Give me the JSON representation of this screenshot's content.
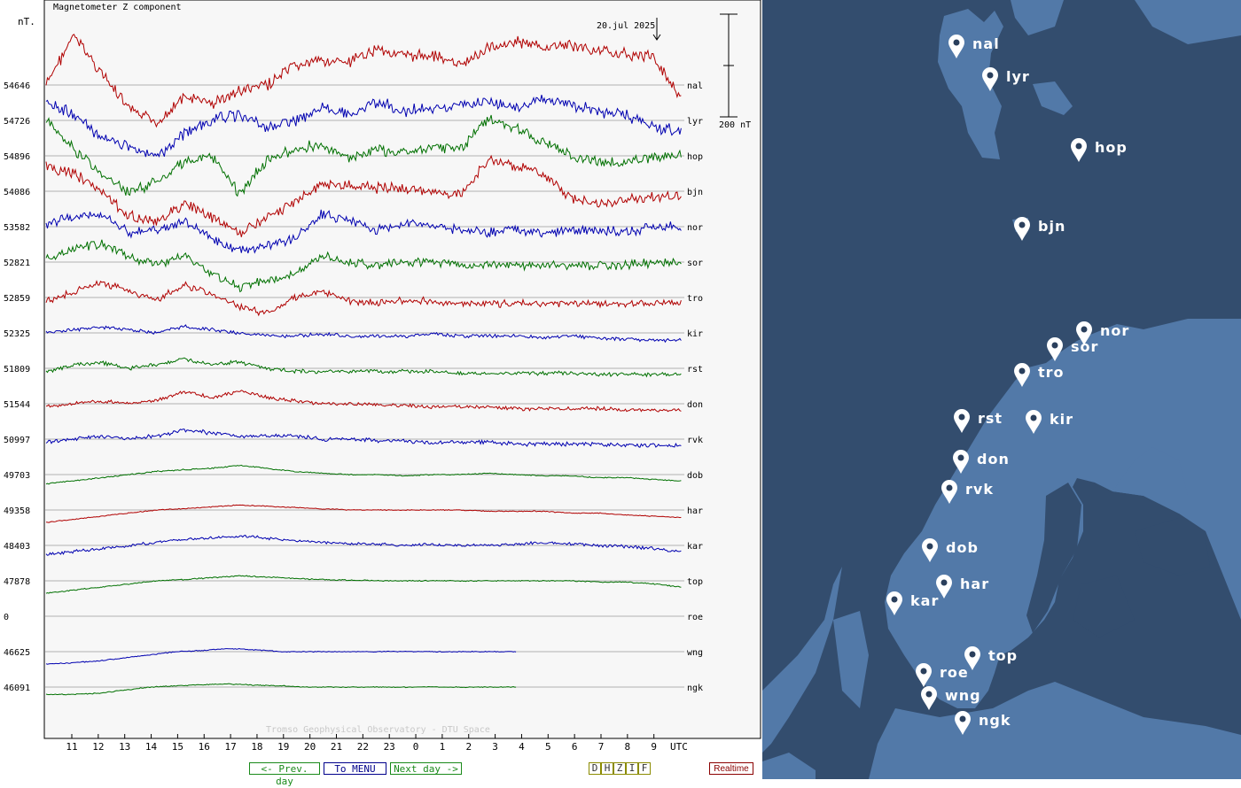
{
  "chart_data": {
    "type": "line",
    "title": "Magnetometer Z component",
    "ylabel": "nT.",
    "xlabel": "UTC",
    "date_label": "20.jul 2025",
    "scale_label": "200 nT",
    "x_ticks": [
      "11",
      "12",
      "13",
      "14",
      "15",
      "16",
      "17",
      "18",
      "19",
      "20",
      "21",
      "22",
      "23",
      "0",
      "1",
      "2",
      "3",
      "4",
      "5",
      "6",
      "7",
      "8",
      "9"
    ],
    "x_start_hour": 10.0,
    "x_hours_span": 24,
    "grid": true,
    "watermark": "Tromso Geophysical Observatory - DTU Space",
    "stations": [
      {
        "code": "nal",
        "baseline": "54646",
        "color": "#b00000",
        "coverage": 1.0,
        "activity": 1.0,
        "pattern": [
          0,
          80,
          20,
          -40,
          -60,
          -20,
          -30,
          -10,
          0,
          30,
          40,
          35,
          60,
          45,
          50,
          30,
          60,
          70,
          60,
          65,
          55,
          50,
          45,
          -20
        ]
      },
      {
        "code": "lyr",
        "baseline": "54726",
        "color": "#0000b0",
        "coverage": 1.0,
        "activity": 1.0,
        "pattern": [
          30,
          10,
          -30,
          -40,
          -60,
          -20,
          0,
          10,
          -10,
          0,
          20,
          10,
          30,
          15,
          20,
          25,
          30,
          20,
          35,
          25,
          15,
          10,
          -10,
          -20
        ]
      },
      {
        "code": "hop",
        "baseline": "54896",
        "color": "#007000",
        "coverage": 1.0,
        "activity": 0.95,
        "pattern": [
          60,
          10,
          -30,
          -60,
          -40,
          -10,
          0,
          -60,
          -10,
          10,
          20,
          -5,
          10,
          5,
          15,
          10,
          60,
          45,
          20,
          0,
          -10,
          -10,
          -5,
          0
        ]
      },
      {
        "code": "bjn",
        "baseline": "54086",
        "color": "#b00000",
        "coverage": 1.0,
        "activity": 0.9,
        "pattern": [
          40,
          30,
          0,
          -40,
          -50,
          -20,
          -40,
          -70,
          -40,
          -20,
          10,
          10,
          5,
          5,
          0,
          -5,
          50,
          40,
          30,
          -10,
          -20,
          -15,
          -10,
          -10
        ]
      },
      {
        "code": "nor",
        "baseline": "53582",
        "color": "#0000b0",
        "coverage": 1.0,
        "activity": 0.8,
        "pattern": [
          5,
          15,
          20,
          -10,
          -5,
          10,
          -20,
          -40,
          -30,
          -20,
          20,
          10,
          -5,
          5,
          0,
          -5,
          -10,
          -5,
          -10,
          -5,
          -5,
          -10,
          0,
          0
        ]
      },
      {
        "code": "sor",
        "baseline": "52821",
        "color": "#007000",
        "coverage": 1.0,
        "activity": 0.75,
        "pattern": [
          5,
          20,
          30,
          10,
          -5,
          10,
          -20,
          -40,
          -30,
          -20,
          10,
          0,
          -5,
          0,
          0,
          -5,
          -5,
          -5,
          -5,
          -5,
          -5,
          -5,
          0,
          0
        ]
      },
      {
        "code": "tro",
        "baseline": "52859",
        "color": "#b00000",
        "coverage": 1.0,
        "activity": 0.6,
        "pattern": [
          -5,
          10,
          25,
          10,
          -5,
          20,
          5,
          -15,
          -25,
          0,
          10,
          -5,
          -10,
          -5,
          -5,
          -10,
          -10,
          -10,
          -10,
          -10,
          -10,
          -10,
          -10,
          -10
        ]
      },
      {
        "code": "kir",
        "baseline": "52325",
        "color": "#0000b0",
        "coverage": 1.0,
        "activity": 0.3,
        "pattern": [
          0,
          5,
          10,
          5,
          0,
          10,
          5,
          0,
          -5,
          -5,
          -2,
          -5,
          -5,
          -5,
          -2,
          -5,
          -5,
          -5,
          -8,
          -5,
          -8,
          -10,
          -12,
          -12
        ]
      },
      {
        "code": "rst",
        "baseline": "51809",
        "color": "#007000",
        "coverage": 1.0,
        "activity": 0.35,
        "pattern": [
          -5,
          5,
          10,
          0,
          5,
          15,
          5,
          10,
          0,
          -5,
          -5,
          -5,
          -5,
          -5,
          -5,
          -8,
          -8,
          -8,
          -8,
          -8,
          -10,
          -10,
          -10,
          -10
        ]
      },
      {
        "code": "don",
        "baseline": "51544",
        "color": "#b00000",
        "coverage": 1.0,
        "activity": 0.3,
        "pattern": [
          -5,
          0,
          5,
          0,
          5,
          20,
          10,
          20,
          10,
          5,
          0,
          0,
          -2,
          -3,
          -5,
          -5,
          -5,
          -8,
          -8,
          -8,
          -8,
          -10,
          -10,
          -10
        ]
      },
      {
        "code": "rvk",
        "baseline": "50997",
        "color": "#0000b0",
        "coverage": 1.0,
        "activity": 0.35,
        "pattern": [
          -5,
          0,
          5,
          0,
          5,
          15,
          10,
          5,
          5,
          5,
          0,
          0,
          -2,
          -3,
          -5,
          -5,
          -5,
          -8,
          -8,
          -8,
          -8,
          -10,
          -10,
          -10
        ]
      },
      {
        "code": "dob",
        "baseline": "49703",
        "color": "#007000",
        "coverage": 1.0,
        "activity": 0.1,
        "pattern": [
          -15,
          -10,
          -5,
          0,
          5,
          8,
          10,
          15,
          10,
          5,
          2,
          0,
          0,
          -2,
          0,
          0,
          2,
          0,
          -2,
          -2,
          -5,
          -5,
          -8,
          -10
        ]
      },
      {
        "code": "har",
        "baseline": "49358",
        "color": "#b00000",
        "coverage": 1.0,
        "activity": 0.08,
        "pattern": [
          -20,
          -15,
          -10,
          -5,
          0,
          2,
          5,
          8,
          6,
          4,
          2,
          0,
          0,
          0,
          0,
          0,
          -2,
          -2,
          -2,
          -5,
          -5,
          -8,
          -10,
          -12
        ]
      },
      {
        "code": "kar",
        "baseline": "48403",
        "color": "#0000b0",
        "coverage": 1.0,
        "activity": 0.25,
        "pattern": [
          -15,
          -10,
          -5,
          0,
          5,
          10,
          12,
          15,
          12,
          8,
          5,
          3,
          2,
          0,
          2,
          0,
          0,
          2,
          5,
          3,
          0,
          -2,
          -5,
          -10
        ]
      },
      {
        "code": "top",
        "baseline": "47878",
        "color": "#007000",
        "coverage": 1.0,
        "activity": 0.1,
        "pattern": [
          -20,
          -15,
          -10,
          -5,
          0,
          2,
          5,
          8,
          6,
          4,
          2,
          1,
          0,
          0,
          0,
          0,
          0,
          0,
          0,
          0,
          -2,
          -2,
          -5,
          -10
        ]
      },
      {
        "code": "roe",
        "baseline": "0",
        "color": "#0000b0",
        "coverage": 0.0,
        "activity": 0.0,
        "pattern": []
      },
      {
        "code": "wng",
        "baseline": "46625",
        "color": "#0000b0",
        "coverage": 0.74,
        "activity": 0.08,
        "pattern": [
          -20,
          -18,
          -15,
          -10,
          -5,
          0,
          2,
          5,
          3,
          0,
          0,
          0,
          0,
          0,
          0,
          0,
          0,
          0,
          0
        ]
      },
      {
        "code": "ngk",
        "baseline": "46091",
        "color": "#007000",
        "coverage": 0.74,
        "activity": 0.08,
        "pattern": [
          -12,
          -12,
          -10,
          -5,
          0,
          2,
          4,
          5,
          3,
          2,
          0,
          0,
          0,
          0,
          0,
          0,
          0,
          0,
          0
        ]
      }
    ]
  },
  "map": {
    "background": "#334d6e",
    "land_color": "#5279a8",
    "labels": [
      "nal",
      "lyr",
      "hop",
      "bjn",
      "nor",
      "sor",
      "tro",
      "rst",
      "kir",
      "don",
      "rvk",
      "dob",
      "har",
      "kar",
      "top",
      "roe",
      "wng",
      "ngk"
    ]
  },
  "buttons": {
    "prev": "<- Prev. day",
    "menu": "To MENU",
    "next": "Next day ->",
    "components": [
      "D",
      "H",
      "Z",
      "I",
      "F"
    ],
    "realtime": "Realtime"
  }
}
